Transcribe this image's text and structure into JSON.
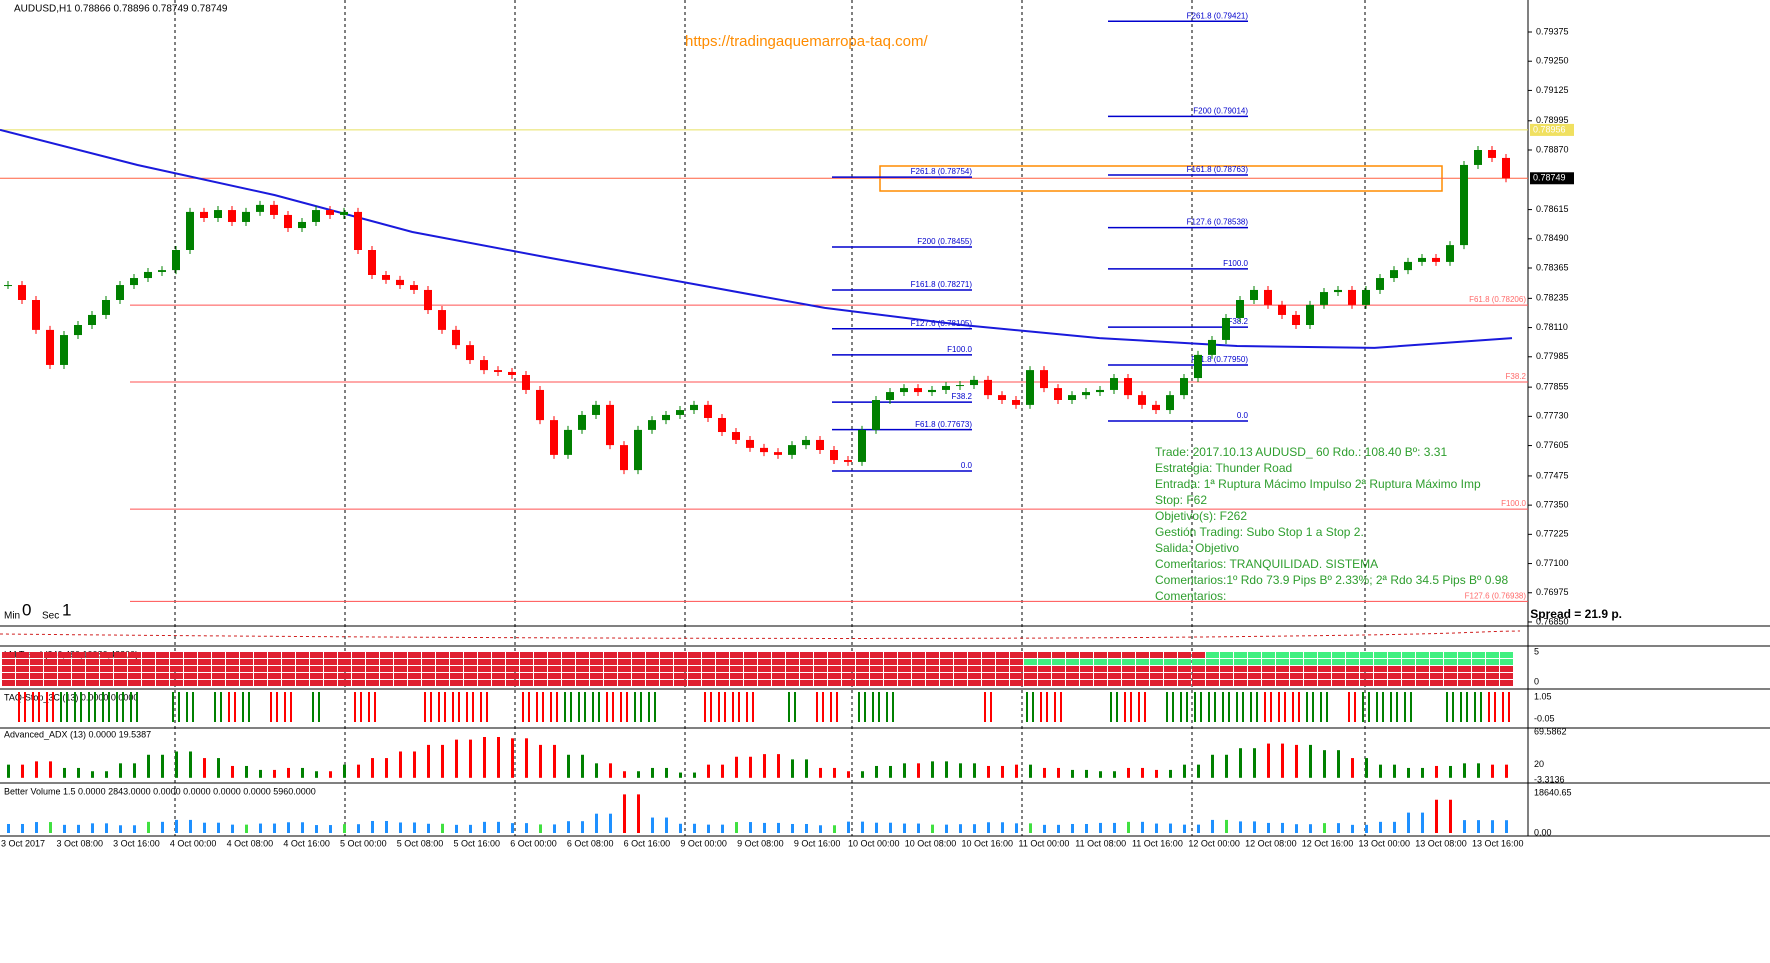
{
  "header": "AUDUSD,H1  0.78866 0.78896 0.78749 0.78749",
  "watermark": "https://tradingaquemarropa-taq.com/",
  "chart_data": {
    "type": "candlestick",
    "closes": [
      0.78292,
      0.78228,
      0.781,
      0.7795,
      0.78078,
      0.78121,
      0.78164,
      0.78228,
      0.78292,
      0.78322,
      0.78348,
      0.78356,
      0.78442,
      0.78605,
      0.78579,
      0.78613,
      0.78562,
      0.78605,
      0.78635,
      0.78592,
      0.78536,
      0.78562,
      0.78613,
      0.78592,
      0.78605,
      0.78442,
      0.78335,
      0.78314,
      0.78292,
      0.78271,
      0.78185,
      0.781,
      0.78035,
      0.77971,
      0.77928,
      0.7792,
      0.77907,
      0.77843,
      0.77714,
      0.77565,
      0.77672,
      0.77736,
      0.77779,
      0.77607,
      0.775,
      0.77672,
      0.77714,
      0.77736,
      0.77757,
      0.77779,
      0.77723,
      0.77663,
      0.77629,
      0.77595,
      0.77577,
      0.77565,
      0.77607,
      0.77629,
      0.77586,
      0.77543,
      0.77535,
      0.77672,
      0.778,
      0.77834,
      0.77851,
      0.77834,
      0.77843,
      0.7786,
      0.77864,
      0.77886,
      0.77821,
      0.778,
      0.77779,
      0.77928,
      0.77851,
      0.778,
      0.77821,
      0.77834,
      0.77843,
      0.77894,
      0.77821,
      0.77779,
      0.77757,
      0.77821,
      0.77894,
      0.77993,
      0.78057,
      0.78151,
      0.78228,
      0.78271,
      0.78207,
      0.78164,
      0.78121,
      0.78207,
      0.78262,
      0.78271,
      0.78207,
      0.78271,
      0.78322,
      0.78356,
      0.78391,
      0.78408,
      0.78391,
      0.78463,
      0.78806,
      0.7887,
      0.78836,
      0.78749
    ],
    "ma": [
      0.78956,
      0.78806,
      0.78677,
      0.78519,
      0.78408,
      0.78301,
      0.78194,
      0.78121,
      0.78065,
      0.78031,
      0.78023,
      0.78065
    ],
    "ylim": [
      0.76837,
      0.79512
    ],
    "yticks": [
      0.79375,
      {
        "value": 0.7925,
        "label": "0.79250"
      },
      0.79125,
      0.78995,
      {
        "value": 0.7887,
        "label": "0.78870"
      },
      0.78615,
      {
        "value": 0.7849,
        "label": "0.78490"
      },
      0.78365,
      0.78235,
      {
        "value": 0.7811,
        "label": "0.78110"
      },
      0.77985,
      0.77855,
      {
        "value": 0.7773,
        "label": "0.77730"
      },
      0.77605,
      0.77475,
      {
        "value": 0.7735,
        "label": "0.77350"
      },
      0.77225,
      {
        "value": 0.771,
        "label": "0.77100"
      },
      0.76975,
      {
        "value": 0.7685,
        "label": "0.76850"
      }
    ],
    "current_price": 0.78749,
    "marker_price": 0.78956,
    "x_labels": [
      "3 Oct 2017",
      "3 Oct 08:00",
      "3 Oct 16:00",
      "4 Oct 00:00",
      "4 Oct 08:00",
      "4 Oct 16:00",
      "5 Oct 00:00",
      "5 Oct 08:00",
      "5 Oct 16:00",
      "6 Oct 00:00",
      "6 Oct 08:00",
      "6 Oct 16:00",
      "9 Oct 00:00",
      "9 Oct 08:00",
      "9 Oct 16:00",
      "10 Oct 00:00",
      "10 Oct 08:00",
      "10 Oct 16:00",
      "11 Oct 00:00",
      "11 Oct 08:00",
      "11 Oct 16:00",
      "12 Oct 00:00",
      "12 Oct 08:00",
      "12 Oct 16:00",
      "13 Oct 00:00",
      "13 Oct 08:00",
      "13 Oct 16:00"
    ],
    "levels": [
      {
        "label": "F61.8 (0.78206)",
        "value": 0.78206
      },
      {
        "label": "F38.2",
        "value": 0.77877
      },
      {
        "label": "F100.0",
        "value": 0.77333
      },
      {
        "label": "F127.6 (0.76938)",
        "value": 0.76938
      }
    ],
    "fib_sets": [
      [
        {
          "label": "F261.8 (0.78754)",
          "value": 0.78754
        },
        {
          "label": "F200 (0.78455)",
          "value": 0.78455
        },
        {
          "label": "F161.8 (0.78271)",
          "value": 0.78271
        },
        {
          "label": "F127.6 (0.78105)",
          "value": 0.78105
        },
        {
          "label": "F100.0",
          "value": 0.77993
        },
        {
          "label": "F38.2",
          "value": 0.77791
        },
        {
          "label": "F61.8 (0.77673)",
          "value": 0.77673
        },
        {
          "label": "0.0",
          "value": 0.77496
        }
      ],
      [
        {
          "label": "F261.8 (0.79421)",
          "value": 0.79421
        },
        {
          "label": "F200 (0.79014)",
          "value": 0.79014
        },
        {
          "label": "F161.8 (0.78763)",
          "value": 0.78763
        },
        {
          "label": "F127.6 (0.78538)",
          "value": 0.78538
        },
        {
          "label": "F100.0",
          "value": 0.78361
        },
        {
          "label": "F38.2",
          "value": 0.78112
        },
        {
          "label": "F61.8 (0.77950)",
          "value": 0.7795
        },
        {
          "label": "0.0",
          "value": 0.7771
        }
      ]
    ]
  },
  "trade_notes": [
    "Trade: 2017.10.13 AUDUSD_ 60  Rdo.: 108.40  Bº: 3.31",
    "Estrategia: Thunder Road",
    "Entrada: 1ª Ruptura Mácimo Impulso 2ª Ruptura Máximo Imp",
    "Stop: F62",
    "Objetivo(s): F262",
    "Gestión Trading: Subo Stop 1  a Stop 2.",
    "Salida: Objetivo",
    "Comentarios: TRANQUILIDAD. SISTEMA",
    "Comentarios:1º Rdo 73.9 Pips Bº 2.33%; 2ª Rdo 34.5 Pips Bº 0.98",
    "Comentarios:"
  ],
  "timer": {
    "min_label": "Min",
    "min": 0,
    "sec_label": "Sec",
    "sec": 1
  },
  "spread": "Spread = 21.9 p.",
  "indicators": {
    "lm_trend": {
      "title": "LM Trend (240,480,10080,43200)",
      "yticks": [
        5,
        0
      ]
    },
    "taq_stop": {
      "title": "TAQ-Stop_3C (13) 0.0000 0.0000",
      "yticks": [
        1.05,
        -0.05
      ]
    },
    "adx": {
      "title": "Advanced_ADX (13) 0.0000 19.5387",
      "ylim": [
        -3.3136,
        69.5862
      ],
      "yticks": [
        69.5862,
        20,
        -3.3136
      ],
      "values": [
        20,
        25,
        15,
        10,
        22,
        35,
        40,
        30,
        18,
        12,
        15,
        10,
        20,
        30,
        40,
        50,
        58,
        62,
        60,
        50,
        35,
        22,
        10,
        15,
        8,
        20,
        32,
        36,
        28,
        15,
        10,
        18,
        22,
        25,
        22,
        18,
        20,
        15,
        12,
        10,
        15,
        12,
        20,
        35,
        45,
        52,
        50,
        42,
        30,
        20,
        15,
        18,
        22,
        20
      ]
    },
    "volume": {
      "title": "Better Volume 1.5 0.0000 2843.0000 0.0000 0.0000 0.0000 0.0000 5960.0000",
      "ylim": [
        0,
        18640.65
      ],
      "yticks": [
        18640.65,
        {
          "value": 0,
          "label": "0.00"
        }
      ],
      "values": [
        4200,
        5100,
        3800,
        4500,
        3600,
        5200,
        6100,
        4800,
        3900,
        4400,
        5000,
        3700,
        4100,
        5600,
        4900,
        4300,
        3800,
        5200,
        4600,
        4000,
        5500,
        9000,
        18000,
        7200,
        4300,
        3900,
        5100,
        4700,
        4200,
        3600,
        5300,
        4800,
        4400,
        3900,
        4100,
        5000,
        4500,
        3800,
        4200,
        4700,
        5200,
        4400,
        3900,
        6100,
        5400,
        4700,
        4100,
        4600,
        3800,
        5200,
        9500,
        15500,
        6000,
        5960
      ]
    }
  }
}
